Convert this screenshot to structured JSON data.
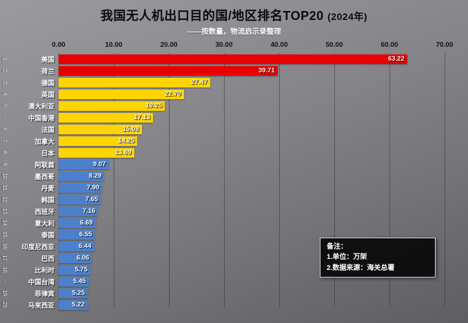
{
  "title": {
    "main": "我国无人机出口目的国/地区排名TOP20",
    "year": "(2024年)"
  },
  "subtitle": "——按数量，物流启示录整理",
  "note": {
    "title": "备注：",
    "lines": [
      "1.单位：万架",
      "2.数据来源：海关总署"
    ]
  },
  "chart_data": {
    "type": "bar",
    "orientation": "horizontal",
    "title": "我国无人机出口目的国/地区排名TOP20 (2024年)",
    "subtitle": "——按数量，物流启示录整理",
    "xlabel": "",
    "ylabel": "",
    "xlim": [
      0,
      70
    ],
    "grid": true,
    "x_ticks": [
      "0.00",
      "10.00",
      "20.00",
      "30.00",
      "40.00",
      "50.00",
      "60.00",
      "70.00"
    ],
    "colors": {
      "red": "#e80000",
      "yellow": "#ffd400",
      "blue": "#4c80cc"
    },
    "rows": [
      {
        "rank": "1",
        "label": "美国",
        "value": 63.22,
        "value_label": "63.22",
        "color": "red"
      },
      {
        "rank": "2",
        "label": "荷兰",
        "value": 39.71,
        "value_label": "39.71",
        "color": "red"
      },
      {
        "rank": "3",
        "label": "德国",
        "value": 27.47,
        "value_label": "27.47",
        "color": "yellow"
      },
      {
        "rank": "4",
        "label": "英国",
        "value": 22.7,
        "value_label": "22.70",
        "color": "yellow"
      },
      {
        "rank": "5",
        "label": "澳大利亚",
        "value": 19.25,
        "value_label": "19.25",
        "color": "yellow"
      },
      {
        "rank": "-",
        "label": "中国香港",
        "value": 17.13,
        "value_label": "17.13",
        "color": "yellow"
      },
      {
        "rank": "6",
        "label": "法国",
        "value": 15.08,
        "value_label": "15.08",
        "color": "yellow"
      },
      {
        "rank": "7",
        "label": "加拿大",
        "value": 14.25,
        "value_label": "14.25",
        "color": "yellow"
      },
      {
        "rank": "8",
        "label": "日本",
        "value": 13.69,
        "value_label": "13.69",
        "color": "yellow"
      },
      {
        "rank": "9",
        "label": "阿联酋",
        "value": 9.07,
        "value_label": "9.07",
        "color": "blue"
      },
      {
        "rank": "10",
        "label": "墨西哥",
        "value": 8.29,
        "value_label": "8.29",
        "color": "blue"
      },
      {
        "rank": "11",
        "label": "丹麦",
        "value": 7.9,
        "value_label": "7.90",
        "color": "blue"
      },
      {
        "rank": "12",
        "label": "韩国",
        "value": 7.65,
        "value_label": "7.65",
        "color": "blue"
      },
      {
        "rank": "13",
        "label": "西班牙",
        "value": 7.16,
        "value_label": "7.16",
        "color": "blue"
      },
      {
        "rank": "14",
        "label": "意大利",
        "value": 6.69,
        "value_label": "6.69",
        "color": "blue"
      },
      {
        "rank": "15",
        "label": "泰国",
        "value": 6.55,
        "value_label": "6.55",
        "color": "blue"
      },
      {
        "rank": "16",
        "label": "印度尼西亚",
        "value": 6.44,
        "value_label": "6.44",
        "color": "blue"
      },
      {
        "rank": "17",
        "label": "巴西",
        "value": 6.06,
        "value_label": "6.06",
        "color": "blue"
      },
      {
        "rank": "18",
        "label": "比利时",
        "value": 5.75,
        "value_label": "5.75",
        "color": "blue"
      },
      {
        "rank": "-",
        "label": "中国台湾",
        "value": 5.45,
        "value_label": "5.45",
        "color": "blue"
      },
      {
        "rank": "19",
        "label": "菲律宾",
        "value": 5.25,
        "value_label": "5.25",
        "color": "blue"
      },
      {
        "rank": "20",
        "label": "马来西亚",
        "value": 5.22,
        "value_label": "5.22",
        "color": "blue"
      }
    ]
  }
}
